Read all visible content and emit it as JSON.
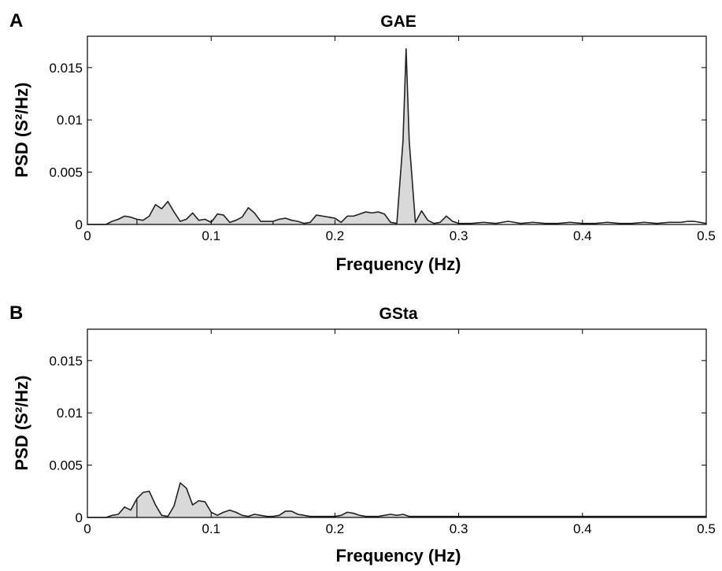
{
  "chart_data": [
    {
      "type": "area",
      "panel_label": "A",
      "title": "GAE",
      "xlabel": "Frequency (Hz)",
      "ylabel": "PSD (S²/Hz)",
      "xlim": [
        0,
        0.5
      ],
      "ylim": [
        0,
        0.018
      ],
      "x_ticks": [
        0,
        0.1,
        0.2,
        0.3,
        0.4,
        0.5
      ],
      "x_tick_labels": [
        "0",
        "0.1",
        "0.2",
        "0.3",
        "0.4",
        "0.5"
      ],
      "y_ticks": [
        0,
        0.005,
        0.01,
        0.015
      ],
      "y_tick_labels": [
        "0",
        "0.005",
        "0.01",
        "0.015"
      ],
      "shaded_range": [
        0.015,
        0.3
      ],
      "fill_color": "#d9d9d9",
      "line_color": "#222222",
      "x": [
        0.0,
        0.015,
        0.02,
        0.025,
        0.03,
        0.035,
        0.04,
        0.045,
        0.05,
        0.055,
        0.06,
        0.065,
        0.07,
        0.075,
        0.08,
        0.085,
        0.09,
        0.095,
        0.1,
        0.105,
        0.11,
        0.115,
        0.12,
        0.125,
        0.13,
        0.135,
        0.14,
        0.145,
        0.15,
        0.155,
        0.16,
        0.165,
        0.17,
        0.175,
        0.18,
        0.185,
        0.19,
        0.195,
        0.2,
        0.205,
        0.21,
        0.215,
        0.22,
        0.225,
        0.23,
        0.235,
        0.24,
        0.245,
        0.25,
        0.255,
        0.2575,
        0.26,
        0.265,
        0.27,
        0.275,
        0.28,
        0.285,
        0.29,
        0.295,
        0.3,
        0.31,
        0.32,
        0.33,
        0.34,
        0.35,
        0.36,
        0.37,
        0.38,
        0.39,
        0.4,
        0.41,
        0.42,
        0.43,
        0.44,
        0.45,
        0.46,
        0.47,
        0.48,
        0.485,
        0.49,
        0.5
      ],
      "y": [
        0.0,
        0.0,
        0.0003,
        0.0005,
        0.0008,
        0.0007,
        0.0005,
        0.0004,
        0.0008,
        0.0019,
        0.0015,
        0.0022,
        0.0012,
        0.0003,
        0.0005,
        0.0011,
        0.0004,
        0.0005,
        0.0002,
        0.001,
        0.0009,
        0.0002,
        0.0004,
        0.0007,
        0.0016,
        0.0011,
        0.0003,
        0.0003,
        0.0003,
        0.0005,
        0.0006,
        0.0004,
        0.0003,
        0.0001,
        0.0002,
        0.0009,
        0.0008,
        0.0007,
        0.0006,
        0.0002,
        0.0008,
        0.0008,
        0.001,
        0.0012,
        0.0011,
        0.0012,
        0.001,
        0.0002,
        0.0001,
        0.008,
        0.0168,
        0.008,
        0.0002,
        0.0013,
        0.0004,
        0.0001,
        0.0002,
        0.0008,
        0.0003,
        0.0001,
        0.0001,
        0.0002,
        0.0001,
        0.0003,
        0.0001,
        0.0002,
        0.0001,
        0.0001,
        0.0002,
        0.0001,
        0.0001,
        0.0002,
        0.0001,
        0.0001,
        0.0002,
        0.0001,
        0.0002,
        0.0002,
        0.0003,
        0.0003,
        0.0001
      ]
    },
    {
      "type": "area",
      "panel_label": "B",
      "title": "GSta",
      "xlabel": "Frequency (Hz)",
      "ylabel": "PSD (S²/Hz)",
      "xlim": [
        0,
        0.5
      ],
      "ylim": [
        0,
        0.018
      ],
      "x_ticks": [
        0,
        0.1,
        0.2,
        0.3,
        0.4,
        0.5
      ],
      "x_tick_labels": [
        "0",
        "0.1",
        "0.2",
        "0.3",
        "0.4",
        "0.5"
      ],
      "y_ticks": [
        0,
        0.005,
        0.01,
        0.015
      ],
      "y_tick_labels": [
        "0",
        "0.005",
        "0.01",
        "0.015"
      ],
      "shaded_range": [
        0.015,
        0.3
      ],
      "fill_color": "#d9d9d9",
      "line_color": "#222222",
      "x": [
        0.0,
        0.015,
        0.02,
        0.025,
        0.03,
        0.035,
        0.04,
        0.045,
        0.05,
        0.055,
        0.06,
        0.065,
        0.07,
        0.075,
        0.08,
        0.085,
        0.09,
        0.095,
        0.1,
        0.105,
        0.11,
        0.115,
        0.12,
        0.125,
        0.13,
        0.135,
        0.14,
        0.145,
        0.15,
        0.155,
        0.16,
        0.165,
        0.17,
        0.175,
        0.18,
        0.185,
        0.19,
        0.195,
        0.2,
        0.205,
        0.21,
        0.215,
        0.22,
        0.225,
        0.23,
        0.235,
        0.24,
        0.245,
        0.25,
        0.255,
        0.26,
        0.265,
        0.27,
        0.28,
        0.29,
        0.3,
        0.31,
        0.32,
        0.33,
        0.34,
        0.35,
        0.36,
        0.37,
        0.38,
        0.39,
        0.4,
        0.41,
        0.42,
        0.43,
        0.44,
        0.45,
        0.46,
        0.47,
        0.48,
        0.49,
        0.5
      ],
      "y": [
        0.0,
        0.0,
        0.0002,
        0.0003,
        0.001,
        0.0007,
        0.0018,
        0.0024,
        0.0025,
        0.0012,
        0.0002,
        0.0001,
        0.0011,
        0.0033,
        0.0028,
        0.0012,
        0.0016,
        0.0015,
        0.0005,
        0.0002,
        0.0005,
        0.0007,
        0.0005,
        0.0002,
        0.0001,
        0.0003,
        0.0002,
        0.0001,
        0.0001,
        0.0002,
        0.0006,
        0.0006,
        0.0003,
        0.0002,
        0.0001,
        0.0001,
        0.0001,
        0.0001,
        0.0001,
        0.0002,
        0.0005,
        0.0004,
        0.0002,
        0.0001,
        0.0001,
        0.0001,
        0.0002,
        0.0003,
        0.0002,
        0.0003,
        0.0001,
        0.0001,
        0.0001,
        0.0001,
        0.0001,
        0.0001,
        0.0001,
        0.0001,
        0.0001,
        0.0001,
        0.0001,
        0.0001,
        0.0001,
        0.0001,
        0.0001,
        0.0001,
        0.0001,
        0.0001,
        0.0001,
        0.0001,
        0.0001,
        0.0001,
        0.0001,
        0.0001,
        0.0001,
        0.0001
      ]
    }
  ]
}
